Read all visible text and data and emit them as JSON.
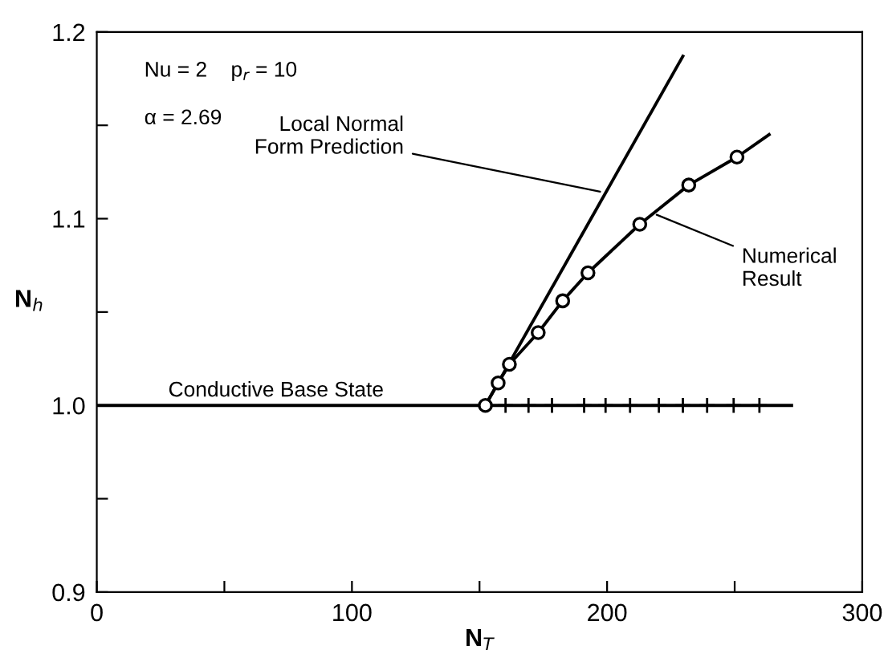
{
  "chart_data": {
    "type": "line",
    "xlabel": "N$_{T}$",
    "ylabel": "N$_{h}$",
    "xlim": [
      0,
      300
    ],
    "ylim": [
      0.9,
      1.2
    ],
    "xticks": [
      0,
      {
        "value": 50,
        "label": null
      },
      100,
      {
        "value": 150,
        "label": null
      },
      200,
      {
        "value": 250,
        "label": null
      },
      300
    ],
    "yticks": [
      0.9,
      {
        "value": 0.95,
        "label": null
      },
      {
        "value": 1.0,
        "label": "1.0"
      },
      {
        "value": 1.05,
        "label": null
      },
      1.1,
      {
        "value": 1.15,
        "label": null
      },
      1.2
    ],
    "grid": false,
    "series": [
      {
        "color": "#000000",
        "marker": "none",
        "x": [
          152.3,
          157.3,
          161.7,
          173.0,
          182.6,
          192.5,
          212.8,
          232.0,
          250.9,
          263.5
        ],
        "values": [
          1.0,
          1.012,
          1.022,
          1.039,
          1.056,
          1.071,
          1.097,
          1.118,
          1.133,
          1.145
        ]
      },
      {
        "type": "scatter",
        "color": "#000000",
        "marker": "circle",
        "x": [
          152.3,
          157.3,
          161.7,
          173.0,
          182.6,
          192.5,
          212.8,
          232.0,
          250.9
        ],
        "values": [
          1.0,
          1.012,
          1.022,
          1.039,
          1.056,
          1.071,
          1.097,
          1.118,
          1.133
        ]
      },
      {
        "color": "#000000",
        "marker": "none",
        "x": [
          152.3,
          229.7
        ],
        "values": [
          1.0,
          1.187
        ]
      },
      {
        "color": "#000000",
        "marker": "none",
        "x": [
          0,
          272.3
        ],
        "values": [
          1.0,
          1.0
        ]
      },
      {
        "type": "scatter",
        "color": "#000000",
        "marker": "cross",
        "x": [
          160.2,
          169.2,
          178.4,
          191.0,
          199.4,
          209.0,
          220.3,
          229.7,
          239.2,
          249.6,
          259.7
        ],
        "values": [
          1.0,
          1.0,
          1.0,
          1.0,
          1.0,
          1.0,
          1.0,
          1.0,
          1.0,
          1.0,
          1.0
        ]
      }
    ],
    "annotations": [
      "Nu = 2    p$_{r}$ = 10",
      "α = 2.69",
      {
        "text": "Local Normal\nForm Prediction",
        "x": 199,
        "y": 1.114
      },
      {
        "text": "Numerical\nResult",
        "x": 217.8,
        "y": 1.103
      },
      {
        "text": "Conductive Base State",
        "x": 28,
        "y": 1.0
      }
    ]
  }
}
